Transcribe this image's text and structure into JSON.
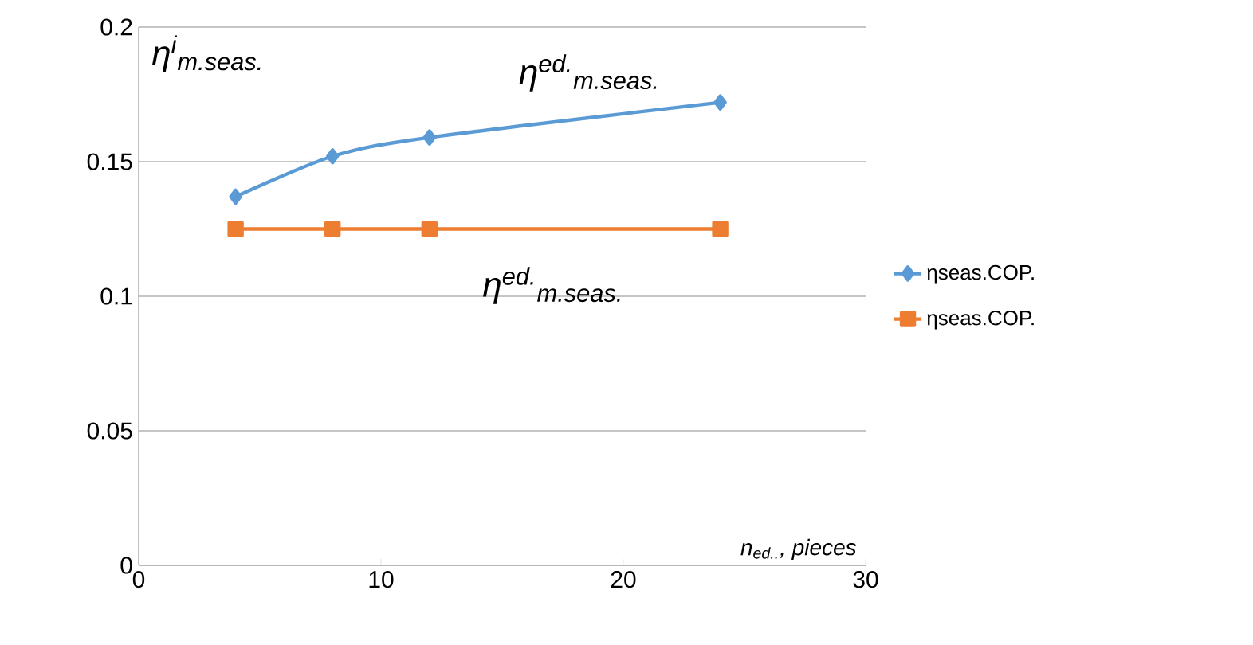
{
  "chart_data": {
    "type": "line",
    "xlabel": "n$_{ed..}$, pieces",
    "ylabel": "η$^{i}$$_{m.seas.}$",
    "x": [
      4,
      8,
      12,
      24
    ],
    "series": [
      {
        "name": "ηseas.COP.",
        "color": "#5b9bd5",
        "marker": "diamond",
        "values": [
          0.137,
          0.152,
          0.159,
          0.172
        ]
      },
      {
        "name": "ηseas.COP.",
        "color": "#ed7d31",
        "marker": "square",
        "values": [
          0.125,
          0.125,
          0.125,
          0.125
        ]
      }
    ],
    "annotations": [
      "η$^{ed.}$$_{m.seas.}$",
      "η$^{ed.}$$_{m.seas.}$"
    ],
    "xlim": [
      0,
      30
    ],
    "xticks": [
      0,
      10,
      20,
      30
    ],
    "ylim": [
      0,
      0.2
    ],
    "yticks": [
      0,
      0.05,
      0.1,
      0.15,
      0.2
    ],
    "grid": "y",
    "legend": "right",
    "line_style": "solid"
  }
}
